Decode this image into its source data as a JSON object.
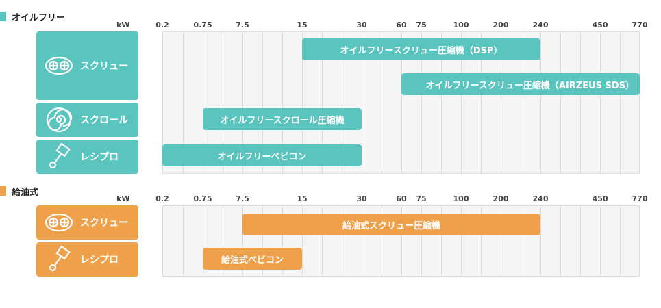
{
  "colors": {
    "teal": "#5ac4bf",
    "orange": "#eea04a"
  },
  "sections": [
    {
      "title": "オイルフリー",
      "color": "#5ac4bf",
      "unit": "kW",
      "ticks": [
        "0.2",
        "0.75",
        "7.5",
        "15",
        "30",
        "60",
        "75",
        "100",
        "200",
        "240",
        "450",
        "770"
      ],
      "categories": [
        {
          "label": "スクリュー",
          "icon": "screw-icon"
        },
        {
          "label": "スクロール",
          "icon": "scroll-icon"
        },
        {
          "label": "レシプロ",
          "icon": "piston-icon"
        }
      ]
    },
    {
      "title": "給油式",
      "color": "#eea04a",
      "unit": "kW",
      "ticks": [
        "0.2",
        "0.75",
        "7.5",
        "15",
        "30",
        "60",
        "75",
        "100",
        "200",
        "240",
        "450",
        "770"
      ],
      "categories": [
        {
          "label": "スクリュー",
          "icon": "screw-icon"
        },
        {
          "label": "レシプロ",
          "icon": "piston-icon"
        }
      ]
    }
  ],
  "chart_data": [
    {
      "type": "bar",
      "orientation": "horizontal-range",
      "xlabel": "kW",
      "x_ticks": [
        "0.2",
        "0.75",
        "7.5",
        "15",
        "30",
        "60",
        "75",
        "100",
        "200",
        "240",
        "450",
        "770"
      ],
      "series": [
        {
          "category": "スクリュー",
          "name": "オイルフリースクリュー圧縮機（DSP）",
          "from": "15",
          "to": "240"
        },
        {
          "category": "スクリュー",
          "name": "オイルフリースクリュー圧縮機（AIRZEUS SDS）",
          "from": "60",
          "to": "770"
        },
        {
          "category": "スクロール",
          "name": "オイルフリースクロール圧縮機",
          "from": "0.75",
          "to": "30"
        },
        {
          "category": "レシプロ",
          "name": "オイルフリーベビコン",
          "from": "0.2",
          "to": "30"
        }
      ]
    },
    {
      "type": "bar",
      "orientation": "horizontal-range",
      "xlabel": "kW",
      "x_ticks": [
        "0.2",
        "0.75",
        "7.5",
        "15",
        "30",
        "60",
        "75",
        "100",
        "200",
        "240",
        "450",
        "770"
      ],
      "series": [
        {
          "category": "スクリュー",
          "name": "給油式スクリュー圧縮機",
          "from": "7.5",
          "to": "240"
        },
        {
          "category": "レシプロ",
          "name": "給油式ベビコン",
          "from": "0.75",
          "to": "15"
        }
      ]
    }
  ]
}
